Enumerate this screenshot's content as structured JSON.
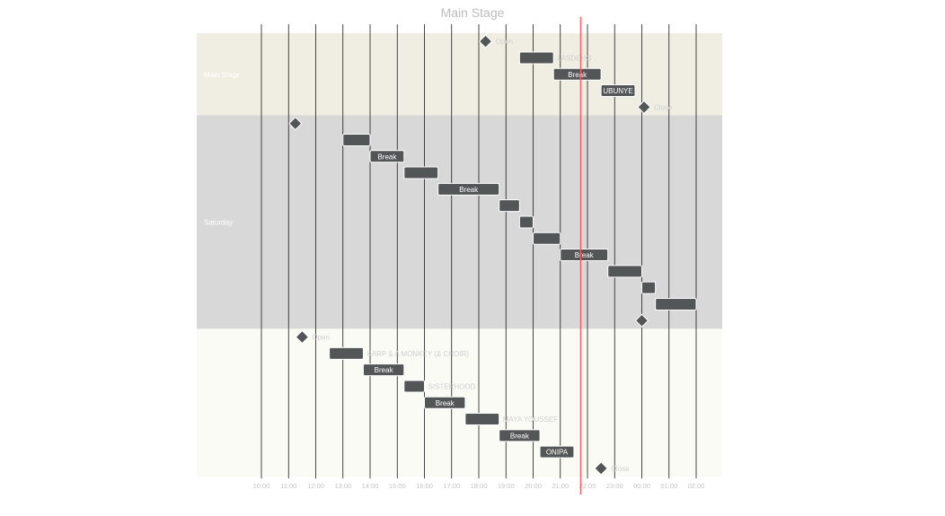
{
  "chart_data": {
    "type": "gantt",
    "title": "Main Stage",
    "time_axis": {
      "ticks": [
        "10:00",
        "11:00",
        "12:00",
        "13:00",
        "14:00",
        "15:00",
        "16:00",
        "17:00",
        "18:00",
        "19:00",
        "20:00",
        "21:00",
        "22:00",
        "23:00",
        "00:00",
        "01:00",
        "02:00"
      ]
    },
    "today_marker": "21:45",
    "colors": {
      "bar": "#525657",
      "marker": "#ff5a5f"
    },
    "groups": [
      {
        "name": "Main Stage",
        "color": "#f0eee3",
        "tasks": [
          {
            "label": "Open",
            "type": "milestone",
            "start": "18:15"
          },
          {
            "label": "LASDEHO",
            "type": "bar",
            "start": "19:30",
            "end": "20:45",
            "label_pos": "right"
          },
          {
            "label": "Break",
            "type": "bar",
            "start": "20:45",
            "end": "22:30",
            "label_pos": "inside"
          },
          {
            "label": "UBUNYE",
            "type": "bar",
            "start": "22:30",
            "end": "23:45",
            "label_pos": "inside"
          },
          {
            "label": "Close",
            "type": "milestone",
            "start": "00:05"
          }
        ]
      },
      {
        "name": "Saturday",
        "color": "#d8d8d8",
        "tasks": [
          {
            "label": "",
            "type": "milestone",
            "start": "11:15"
          },
          {
            "label": "",
            "type": "bar",
            "start": "13:00",
            "end": "14:00"
          },
          {
            "label": "Break",
            "type": "bar",
            "start": "14:00",
            "end": "15:15",
            "label_pos": "inside"
          },
          {
            "label": "",
            "type": "bar",
            "start": "15:15",
            "end": "16:30"
          },
          {
            "label": "Break",
            "type": "bar",
            "start": "16:30",
            "end": "18:45",
            "label_pos": "inside"
          },
          {
            "label": "",
            "type": "bar",
            "start": "18:45",
            "end": "19:30"
          },
          {
            "label": "",
            "type": "bar",
            "start": "19:30",
            "end": "20:00"
          },
          {
            "label": "",
            "type": "bar",
            "start": "20:00",
            "end": "21:00"
          },
          {
            "label": "Break",
            "type": "bar",
            "start": "21:00",
            "end": "22:45",
            "label_pos": "inside"
          },
          {
            "label": "",
            "type": "bar",
            "start": "22:45",
            "end": "00:00"
          },
          {
            "label": "",
            "type": "bar",
            "start": "00:00",
            "end": "00:30"
          },
          {
            "label": "",
            "type": "bar",
            "start": "00:30",
            "end": "02:00"
          },
          {
            "label": "",
            "type": "milestone",
            "start": "00:00"
          }
        ]
      },
      {
        "name": "",
        "color": "#fbfbf6",
        "tasks": [
          {
            "label": "Open",
            "type": "milestone",
            "start": "11:30"
          },
          {
            "label": "KARP & A MONKEY (& CHOIR)",
            "type": "bar",
            "start": "12:30",
            "end": "13:45",
            "label_pos": "right"
          },
          {
            "label": "Break",
            "type": "bar",
            "start": "13:45",
            "end": "15:15",
            "label_pos": "inside"
          },
          {
            "label": "SISTERHOOD",
            "type": "bar",
            "start": "15:15",
            "end": "16:00",
            "label_pos": "right"
          },
          {
            "label": "Break",
            "type": "bar",
            "start": "16:00",
            "end": "17:30",
            "label_pos": "inside"
          },
          {
            "label": "MAYA YOUSSEF",
            "type": "bar",
            "start": "17:30",
            "end": "18:45",
            "label_pos": "right"
          },
          {
            "label": "Break",
            "type": "bar",
            "start": "18:45",
            "end": "20:15",
            "label_pos": "inside"
          },
          {
            "label": "ONIPA",
            "type": "bar",
            "start": "20:15",
            "end": "21:30",
            "label_pos": "inside"
          },
          {
            "label": "Close",
            "type": "milestone",
            "start": "22:30"
          }
        ]
      }
    ]
  }
}
